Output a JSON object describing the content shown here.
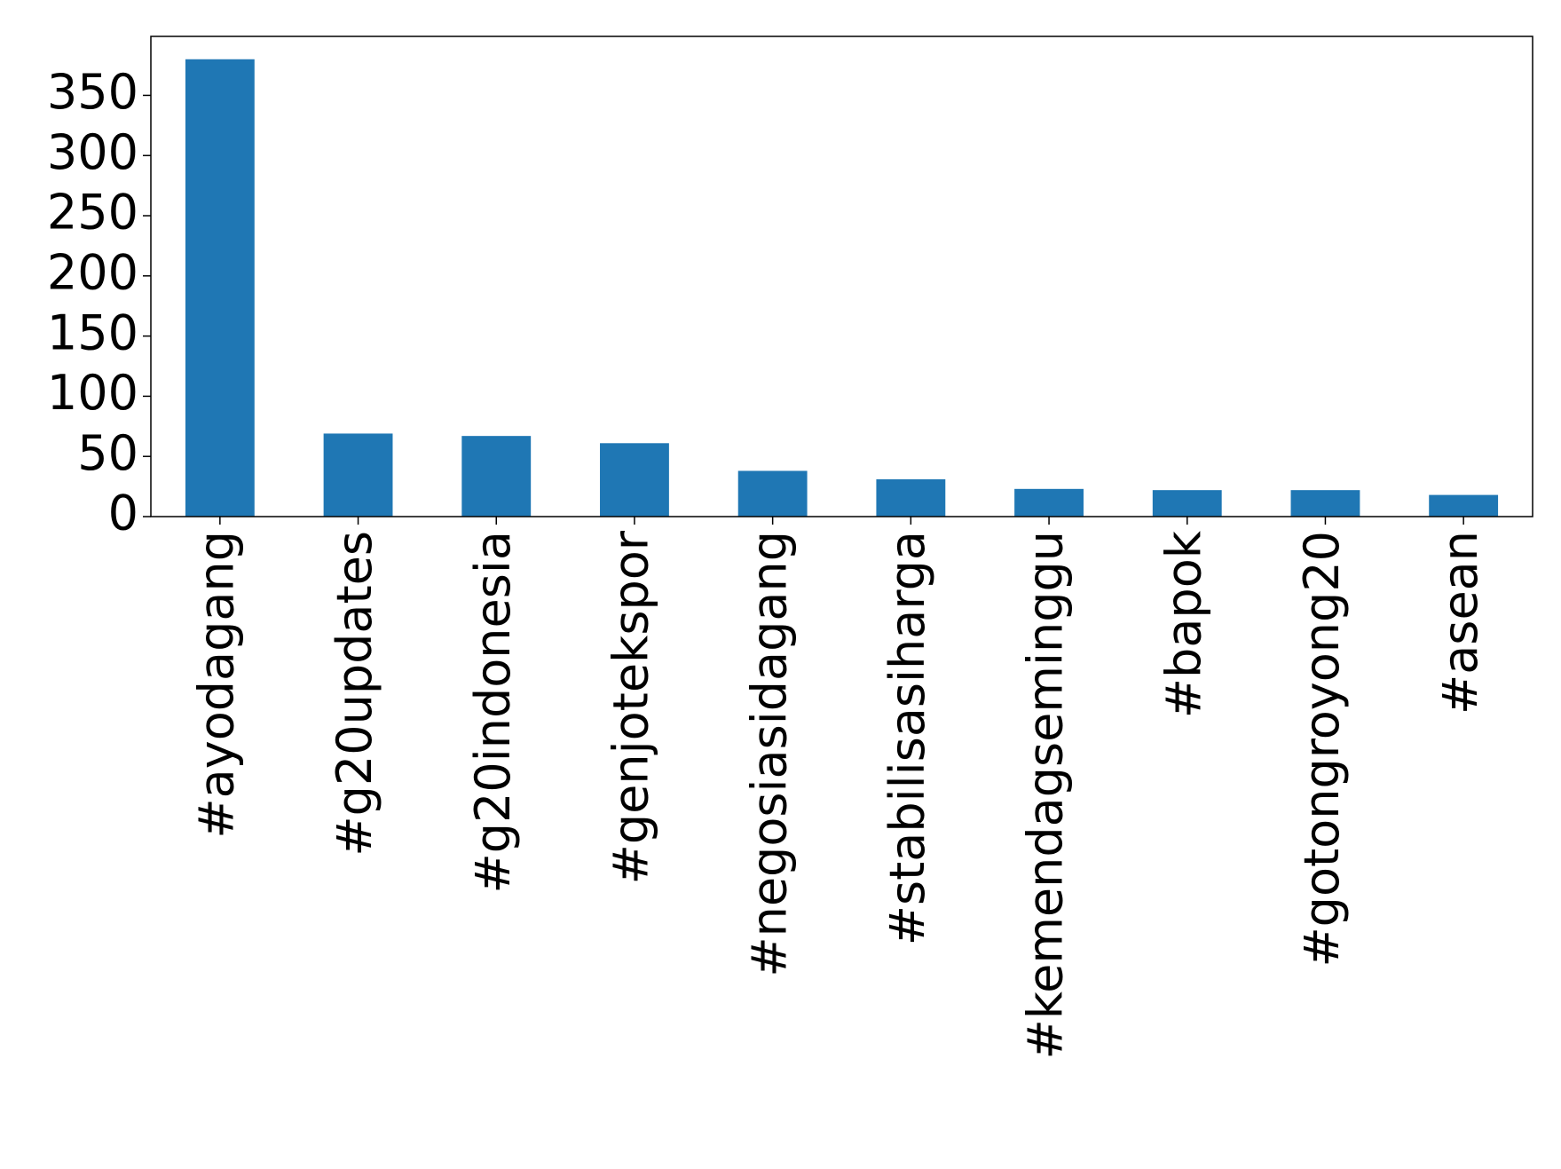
{
  "chart_data": {
    "type": "bar",
    "categories": [
      "#ayodagang",
      "#g20updates",
      "#g20indonesia",
      "#genjotekspor",
      "#negosiasidagang",
      "#stabilisasiharga",
      "#kemendagseminggu",
      "#bapok",
      "#gotongroyong20",
      "#asean"
    ],
    "values": [
      380,
      69,
      67,
      61,
      38,
      31,
      23,
      22,
      22,
      18
    ],
    "color": "#1f77b4",
    "ylim": [
      0,
      399
    ],
    "yticks": [
      0,
      50,
      100,
      150,
      200,
      250,
      300,
      350
    ],
    "grid": false
  }
}
